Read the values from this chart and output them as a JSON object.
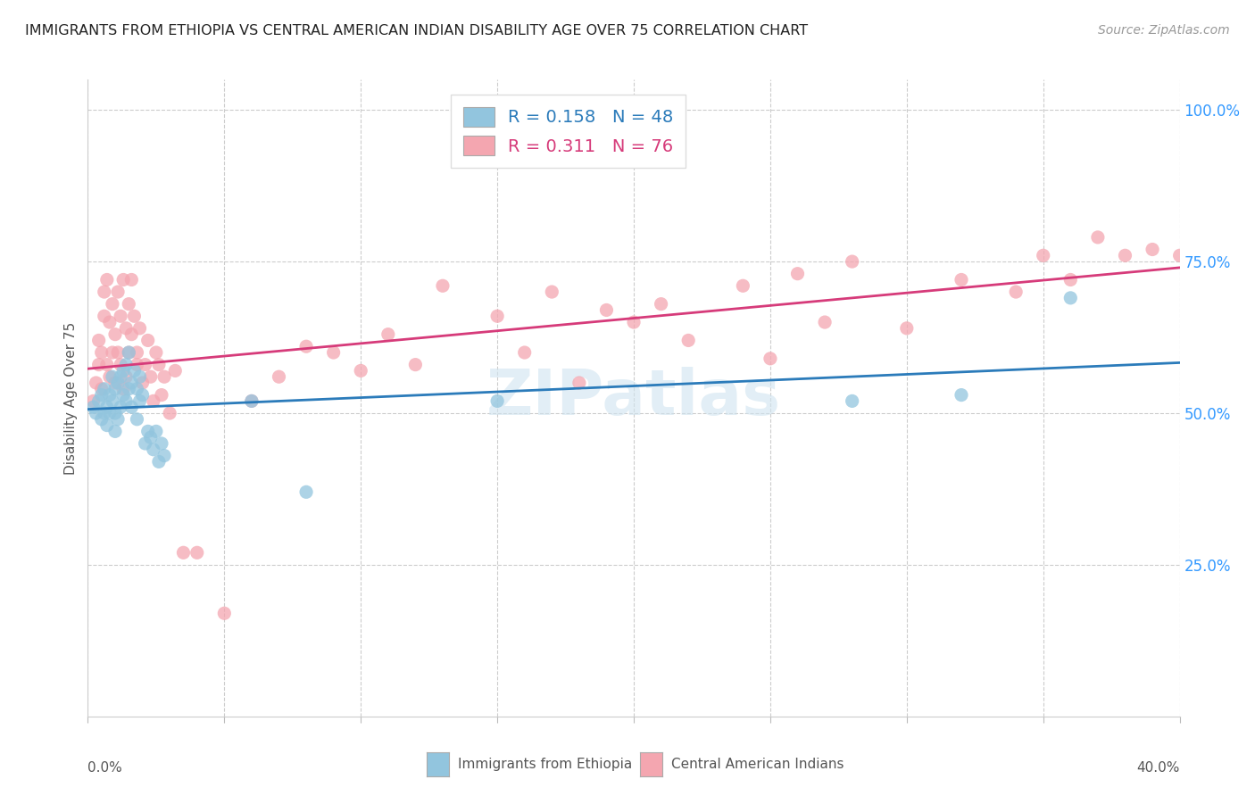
{
  "title": "IMMIGRANTS FROM ETHIOPIA VS CENTRAL AMERICAN INDIAN DISABILITY AGE OVER 75 CORRELATION CHART",
  "source": "Source: ZipAtlas.com",
  "ylabel": "Disability Age Over 75",
  "xmin": 0.0,
  "xmax": 0.4,
  "ymin": 0.0,
  "ymax": 1.05,
  "yticks": [
    0.25,
    0.5,
    0.75,
    1.0
  ],
  "ytick_labels": [
    "25.0%",
    "50.0%",
    "75.0%",
    "100.0%"
  ],
  "blue_R": 0.158,
  "blue_N": 48,
  "pink_R": 0.311,
  "pink_N": 76,
  "blue_color": "#92c5de",
  "pink_color": "#f4a6b0",
  "blue_line_color": "#2b7bba",
  "pink_line_color": "#d63b7a",
  "watermark": "ZIPatlas",
  "legend_label_blue": "Immigrants from Ethiopia",
  "legend_label_pink": "Central American Indians",
  "blue_scatter_x": [
    0.002,
    0.003,
    0.004,
    0.005,
    0.005,
    0.006,
    0.006,
    0.007,
    0.007,
    0.008,
    0.008,
    0.009,
    0.009,
    0.01,
    0.01,
    0.01,
    0.011,
    0.011,
    0.012,
    0.012,
    0.013,
    0.013,
    0.014,
    0.014,
    0.015,
    0.015,
    0.016,
    0.016,
    0.017,
    0.018,
    0.018,
    0.019,
    0.019,
    0.02,
    0.021,
    0.022,
    0.023,
    0.024,
    0.025,
    0.026,
    0.027,
    0.028,
    0.06,
    0.08,
    0.15,
    0.28,
    0.32,
    0.36
  ],
  "blue_scatter_y": [
    0.51,
    0.5,
    0.52,
    0.49,
    0.53,
    0.5,
    0.54,
    0.51,
    0.48,
    0.53,
    0.5,
    0.52,
    0.56,
    0.5,
    0.54,
    0.47,
    0.55,
    0.49,
    0.56,
    0.51,
    0.53,
    0.57,
    0.52,
    0.58,
    0.54,
    0.6,
    0.55,
    0.51,
    0.57,
    0.54,
    0.49,
    0.56,
    0.52,
    0.53,
    0.45,
    0.47,
    0.46,
    0.44,
    0.47,
    0.42,
    0.45,
    0.43,
    0.52,
    0.37,
    0.52,
    0.52,
    0.53,
    0.69
  ],
  "pink_scatter_x": [
    0.002,
    0.003,
    0.004,
    0.004,
    0.005,
    0.005,
    0.006,
    0.006,
    0.007,
    0.007,
    0.008,
    0.008,
    0.009,
    0.009,
    0.01,
    0.01,
    0.011,
    0.011,
    0.012,
    0.012,
    0.013,
    0.013,
    0.014,
    0.014,
    0.015,
    0.015,
    0.016,
    0.016,
    0.017,
    0.018,
    0.018,
    0.019,
    0.02,
    0.021,
    0.022,
    0.023,
    0.024,
    0.025,
    0.026,
    0.027,
    0.028,
    0.03,
    0.032,
    0.035,
    0.04,
    0.05,
    0.06,
    0.07,
    0.08,
    0.09,
    0.1,
    0.11,
    0.12,
    0.13,
    0.15,
    0.17,
    0.19,
    0.21,
    0.24,
    0.26,
    0.28,
    0.3,
    0.32,
    0.34,
    0.35,
    0.36,
    0.37,
    0.38,
    0.39,
    0.4,
    0.16,
    0.18,
    0.2,
    0.22,
    0.25,
    0.27
  ],
  "pink_scatter_y": [
    0.52,
    0.55,
    0.58,
    0.62,
    0.54,
    0.6,
    0.7,
    0.66,
    0.58,
    0.72,
    0.65,
    0.56,
    0.6,
    0.68,
    0.55,
    0.63,
    0.7,
    0.6,
    0.66,
    0.58,
    0.72,
    0.54,
    0.64,
    0.56,
    0.68,
    0.6,
    0.72,
    0.63,
    0.66,
    0.6,
    0.58,
    0.64,
    0.55,
    0.58,
    0.62,
    0.56,
    0.52,
    0.6,
    0.58,
    0.53,
    0.56,
    0.5,
    0.57,
    0.27,
    0.27,
    0.17,
    0.52,
    0.56,
    0.61,
    0.6,
    0.57,
    0.63,
    0.58,
    0.71,
    0.66,
    0.7,
    0.67,
    0.68,
    0.71,
    0.73,
    0.75,
    0.64,
    0.72,
    0.7,
    0.76,
    0.72,
    0.79,
    0.76,
    0.77,
    0.76,
    0.6,
    0.55,
    0.65,
    0.62,
    0.59,
    0.65
  ]
}
